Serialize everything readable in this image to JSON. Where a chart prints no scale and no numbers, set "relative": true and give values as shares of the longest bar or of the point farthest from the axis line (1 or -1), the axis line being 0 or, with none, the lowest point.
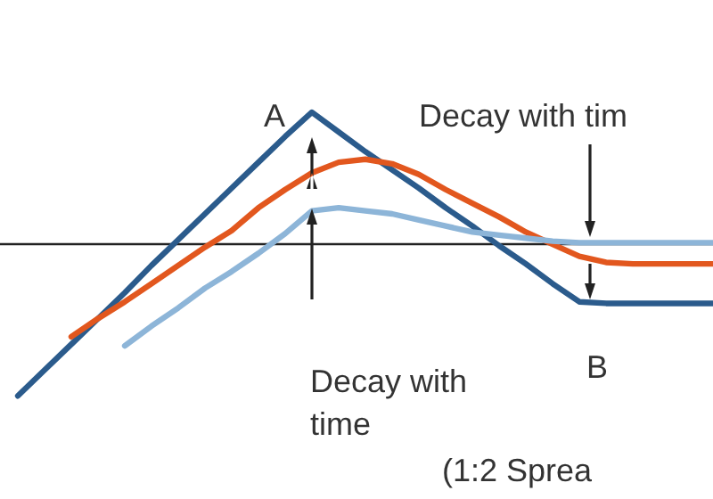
{
  "chart_data": {
    "type": "line",
    "relative": true,
    "categories": [
      null,
      null,
      null,
      null,
      null,
      null,
      null,
      null,
      null,
      null,
      null,
      null,
      null,
      null,
      null,
      null,
      null,
      null,
      null,
      null,
      null,
      null,
      null,
      null,
      null,
      null,
      null
    ],
    "series": [
      {
        "color": "#2b5b8c",
        "values": [
          -1,
          -0.83,
          -0.66,
          -0.49,
          -0.32,
          -0.14,
          0.03,
          0.2,
          0.37,
          0.54,
          0.71,
          0.87,
          0.74,
          0.61,
          0.49,
          0.37,
          0.24,
          0.12,
          -0.01,
          -0.13,
          -0.26,
          -0.38,
          -0.39,
          -0.39,
          -0.39,
          -0.39,
          -0.39
        ]
      },
      {
        "color": "#e2571e",
        "values": [
          null,
          null,
          -0.61,
          -0.49,
          -0.38,
          -0.26,
          -0.14,
          -0.02,
          0.09,
          0.24,
          0.36,
          0.47,
          0.54,
          0.56,
          0.53,
          0.46,
          0.36,
          0.27,
          0.18,
          0.08,
          0,
          -0.08,
          -0.12,
          -0.13,
          -0.13,
          -0.13,
          -0.13
        ]
      },
      {
        "color": "#8db5d8",
        "values": [
          null,
          null,
          null,
          null,
          -0.67,
          -0.54,
          -0.42,
          -0.29,
          -0.18,
          -0.06,
          0.07,
          0.22,
          0.24,
          0.22,
          0.2,
          0.16,
          0.12,
          0.08,
          0.06,
          0.04,
          0.02,
          0.01,
          0.01,
          0.01,
          0.01,
          0.01,
          0.01
        ]
      }
    ],
    "annotations": [
      "A",
      "B",
      "Decay with tim",
      "Decay with\ntime",
      "(1:2 Sprea"
    ]
  }
}
